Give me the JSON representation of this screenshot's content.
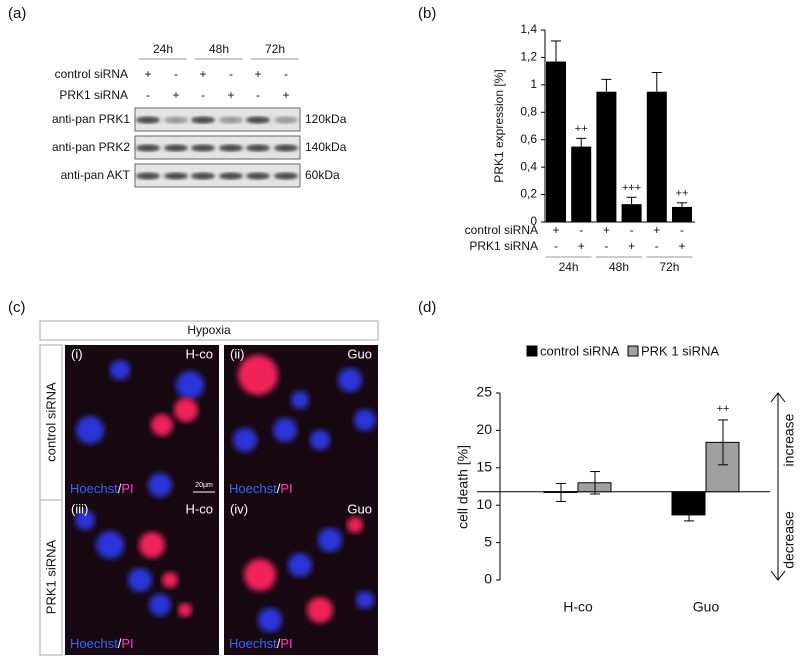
{
  "panels": {
    "a": "(a)",
    "b": "(b)",
    "c": "(c)",
    "d": "(d)"
  },
  "blot": {
    "timepoints": [
      "24h",
      "48h",
      "72h"
    ],
    "conditions": [
      {
        "label": "control  siRNA",
        "signs": [
          "+",
          "-",
          "+",
          "-",
          "+",
          "-"
        ]
      },
      {
        "label": "PRK1  siRNA",
        "signs": [
          "-",
          "+",
          "-",
          "+",
          "-",
          "+"
        ]
      }
    ],
    "antibodies": [
      "anti-pan PRK1",
      "anti-pan PRK2",
      "anti-pan AKT"
    ],
    "sizes": [
      "120kDa",
      "140kDa",
      "60kDa"
    ]
  },
  "chart_data": [
    {
      "type": "bar",
      "ylabel": "PRK1 expression [%]",
      "ylim": [
        0,
        1.4
      ],
      "yticks": [
        0,
        {
          "value": 0.2,
          "label": "0,2"
        },
        {
          "value": 0.4,
          "label": "0,4"
        },
        {
          "value": 0.6,
          "label": "0,6"
        },
        {
          "value": 0.8,
          "label": "0,8"
        },
        1,
        {
          "value": 1.2,
          "label": "1,2"
        },
        {
          "value": 1.4,
          "label": "1,4"
        }
      ],
      "color": "#000000",
      "values": [
        1.17,
        0.55,
        0.95,
        0.13,
        0.95,
        0.11
      ],
      "errors": [
        0.15,
        0.06,
        0.09,
        0.05,
        0.14,
        0.03
      ],
      "annotations": [
        null,
        "++",
        null,
        "+++",
        null,
        "++"
      ],
      "conditions": [
        {
          "label": "control  siRNA",
          "signs": [
            "+",
            "-",
            "+",
            "-",
            "+",
            "-"
          ]
        },
        {
          "label": "PRK1  siRNA",
          "signs": [
            "-",
            "+",
            "-",
            "+",
            "-",
            "+"
          ]
        }
      ],
      "groups": [
        "24h",
        "48h",
        "72h"
      ]
    },
    {
      "type": "bar",
      "ylabel": "cell death [%]",
      "categories": [
        "H-co",
        "Guo"
      ],
      "ylim": [
        0,
        25
      ],
      "yticks": [
        0,
        5,
        10,
        15,
        20,
        25
      ],
      "baseline": 11.8,
      "series": [
        {
          "name": "control siRNA",
          "color": "#000000",
          "values": [
            11.7,
            8.7
          ],
          "errors": [
            1.2,
            0.8
          ],
          "annotations": [
            null,
            null
          ]
        },
        {
          "name": "PRK 1 siRNA",
          "color": "#a0a0a0",
          "values": [
            13.0,
            18.4
          ],
          "errors": [
            1.5,
            3.0
          ],
          "annotations": [
            null,
            "++"
          ]
        }
      ],
      "arrows": [
        "increase",
        "decrease"
      ]
    }
  ],
  "microscopy": {
    "title": "Hypoxia",
    "rows": [
      "control siRNA",
      "PRK1 siRNA"
    ],
    "images": [
      {
        "index": "(i)",
        "treatment": "H-co"
      },
      {
        "index": "(ii)",
        "treatment": "Guo"
      },
      {
        "index": "(iii)",
        "treatment": "H-co"
      },
      {
        "index": "(iv)",
        "treatment": "Guo"
      }
    ],
    "stain_a": "Hoechst",
    "separator": "/",
    "stain_b": "PI",
    "scale_bar": "20µm"
  }
}
